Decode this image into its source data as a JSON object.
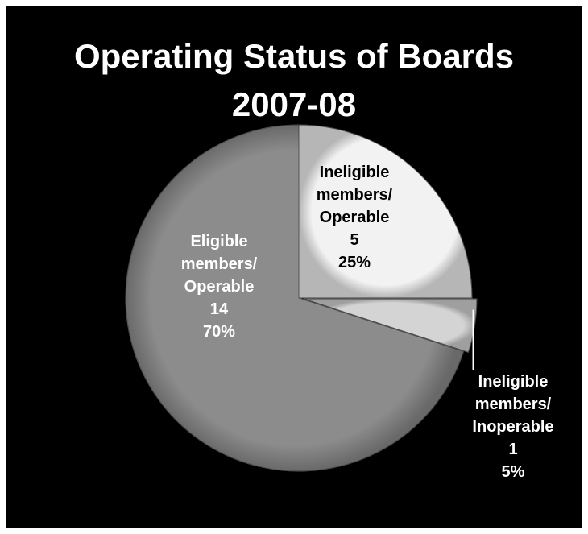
{
  "chart_data": {
    "type": "pie",
    "title": "Operating Status of Boards 2007-08",
    "categories": [
      "Ineligible members/ Operable",
      "Ineligible members/ Inoperable",
      "Eligible members/ Operable"
    ],
    "values": [
      5,
      1,
      14
    ],
    "percent_labels": [
      "25%",
      "5%",
      "70%"
    ],
    "colors": [
      "#f2f2f2",
      "#d4d4d4",
      "#8c8c8c"
    ]
  }
}
